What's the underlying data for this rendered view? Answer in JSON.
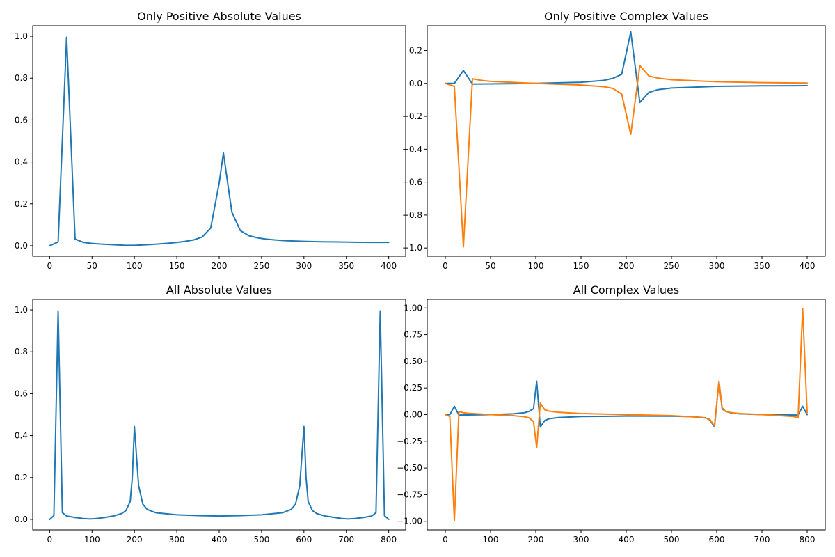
{
  "chart_data": [
    {
      "type": "line",
      "title": "Only Positive Absolute Values",
      "xlabel": "",
      "ylabel": "",
      "xlim": [
        -20,
        420
      ],
      "ylim": [
        -0.05,
        1.05
      ],
      "xticks": [
        0,
        50,
        100,
        150,
        200,
        250,
        300,
        350,
        400
      ],
      "yticks": [
        0.0,
        0.2,
        0.4,
        0.6,
        0.8,
        1.0
      ],
      "ytick_decimals": 1,
      "grid": false,
      "series": [
        {
          "color": "#1f77b4",
          "x": [
            0,
            10,
            20,
            30,
            40,
            50,
            60,
            70,
            80,
            90,
            100,
            110,
            120,
            130,
            140,
            150,
            160,
            170,
            180,
            190,
            200,
            205,
            210,
            215,
            225,
            235,
            245,
            255,
            265,
            275,
            285,
            300,
            320,
            340,
            360,
            380,
            400
          ],
          "y": [
            0.0,
            0.018,
            0.995,
            0.032,
            0.016,
            0.011,
            0.008,
            0.006,
            0.004,
            0.002,
            0.002,
            0.004,
            0.006,
            0.009,
            0.012,
            0.016,
            0.021,
            0.028,
            0.042,
            0.085,
            0.3,
            0.443,
            0.3,
            0.16,
            0.072,
            0.048,
            0.038,
            0.032,
            0.028,
            0.025,
            0.023,
            0.021,
            0.019,
            0.018,
            0.017,
            0.016,
            0.016
          ]
        }
      ]
    },
    {
      "type": "line",
      "title": "Only Positive Complex Values",
      "xlabel": "",
      "ylabel": "",
      "xlim": [
        -20,
        420
      ],
      "ylim": [
        -1.05,
        0.35
      ],
      "xticks": [
        0,
        50,
        100,
        150,
        200,
        250,
        300,
        350,
        400
      ],
      "yticks": [
        0.2,
        0.0,
        -0.2,
        -0.4,
        -0.6,
        -0.8,
        -1.0
      ],
      "ytick_decimals": 1,
      "grid": false,
      "series": [
        {
          "color": "#1f77b4",
          "x": [
            0,
            10,
            20,
            30,
            50,
            100,
            150,
            175,
            185,
            195,
            205,
            215,
            225,
            235,
            250,
            300,
            350,
            400
          ],
          "y": [
            0.0,
            0.0,
            0.078,
            -0.004,
            -0.003,
            0.0,
            0.007,
            0.018,
            0.03,
            0.055,
            0.313,
            -0.116,
            -0.055,
            -0.038,
            -0.028,
            -0.018,
            -0.015,
            -0.014
          ]
        },
        {
          "color": "#ff7f0e",
          "x": [
            0,
            10,
            20,
            30,
            40,
            50,
            100,
            150,
            175,
            185,
            195,
            205,
            215,
            225,
            235,
            250,
            300,
            350,
            400
          ],
          "y": [
            0.0,
            -0.018,
            -0.993,
            0.028,
            0.018,
            0.012,
            0.0,
            -0.01,
            -0.02,
            -0.03,
            -0.065,
            -0.31,
            0.108,
            0.045,
            0.032,
            0.022,
            0.01,
            0.005,
            0.002
          ]
        }
      ]
    },
    {
      "type": "line",
      "title": "All Absolute Values",
      "xlabel": "",
      "ylabel": "",
      "xlim": [
        -40,
        840
      ],
      "ylim": [
        -0.05,
        1.05
      ],
      "xticks": [
        0,
        100,
        200,
        300,
        400,
        500,
        600,
        700,
        800
      ],
      "yticks": [
        0.0,
        0.2,
        0.4,
        0.6,
        0.8,
        1.0
      ],
      "ytick_decimals": 1,
      "grid": false,
      "series": [
        {
          "color": "#1f77b4",
          "x": [
            0,
            10,
            20,
            30,
            40,
            60,
            80,
            95,
            110,
            130,
            150,
            170,
            180,
            190,
            195,
            200,
            205,
            210,
            220,
            230,
            250,
            300,
            350,
            400,
            450,
            500,
            550,
            570,
            580,
            590,
            595,
            600,
            605,
            610,
            620,
            630,
            650,
            690,
            705,
            720,
            740,
            760,
            770,
            780,
            790,
            800
          ],
          "y": [
            0.0,
            0.018,
            0.995,
            0.032,
            0.016,
            0.009,
            0.004,
            0.002,
            0.004,
            0.009,
            0.016,
            0.028,
            0.042,
            0.085,
            0.2,
            0.443,
            0.3,
            0.16,
            0.072,
            0.048,
            0.032,
            0.022,
            0.018,
            0.016,
            0.018,
            0.022,
            0.032,
            0.048,
            0.072,
            0.16,
            0.3,
            0.443,
            0.2,
            0.085,
            0.042,
            0.028,
            0.016,
            0.004,
            0.002,
            0.004,
            0.009,
            0.016,
            0.032,
            0.995,
            0.018,
            0.0
          ]
        }
      ]
    },
    {
      "type": "line",
      "title": "All Complex Values",
      "xlabel": "",
      "ylabel": "",
      "xlim": [
        -40,
        840
      ],
      "ylim": [
        -1.08,
        1.08
      ],
      "xticks": [
        0,
        100,
        200,
        300,
        400,
        500,
        600,
        700,
        800
      ],
      "yticks": [
        1.0,
        0.75,
        0.5,
        0.25,
        0.0,
        -0.25,
        -0.5,
        -0.75,
        -1.0
      ],
      "ytick_decimals": 2,
      "grid": false,
      "series": [
        {
          "color": "#1f77b4",
          "x": [
            0,
            10,
            20,
            30,
            50,
            100,
            150,
            175,
            185,
            195,
            202,
            210,
            220,
            230,
            250,
            300,
            400,
            500,
            550,
            575,
            585,
            595,
            605,
            612,
            620,
            630,
            650,
            700,
            750,
            780,
            790,
            800
          ],
          "y": [
            0.0,
            0.0,
            0.078,
            -0.004,
            -0.003,
            0.0,
            0.007,
            0.018,
            0.03,
            0.055,
            0.313,
            -0.116,
            -0.055,
            -0.038,
            -0.028,
            -0.018,
            -0.014,
            -0.015,
            -0.02,
            -0.03,
            -0.05,
            -0.116,
            0.313,
            0.055,
            0.03,
            0.018,
            0.007,
            0.0,
            -0.003,
            -0.004,
            0.078,
            0.0
          ]
        },
        {
          "color": "#ff7f0e",
          "x": [
            0,
            10,
            20,
            30,
            40,
            50,
            100,
            150,
            175,
            185,
            195,
            202,
            210,
            220,
            230,
            250,
            300,
            400,
            500,
            550,
            575,
            585,
            595,
            605,
            612,
            620,
            630,
            650,
            700,
            750,
            770,
            780,
            790,
            800
          ],
          "y": [
            0.0,
            -0.018,
            -0.993,
            0.028,
            0.018,
            0.012,
            0.0,
            -0.01,
            -0.02,
            -0.03,
            -0.065,
            -0.31,
            0.108,
            0.045,
            0.032,
            0.022,
            0.01,
            0.0,
            -0.01,
            -0.022,
            -0.032,
            -0.045,
            -0.108,
            0.31,
            0.065,
            0.03,
            0.02,
            0.01,
            0.0,
            -0.012,
            -0.018,
            -0.028,
            0.993,
            0.018
          ]
        }
      ]
    }
  ]
}
